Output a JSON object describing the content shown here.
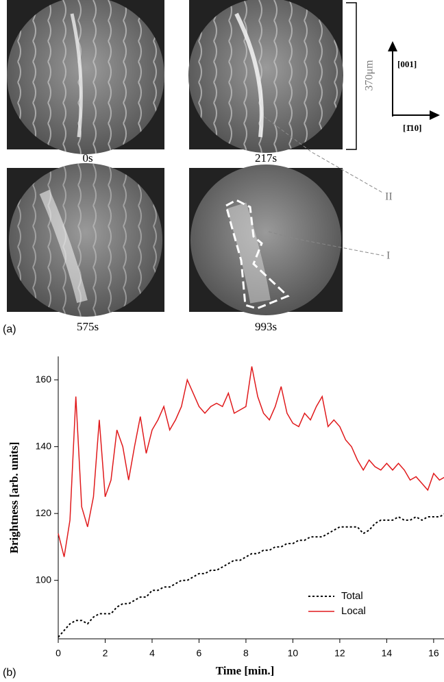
{
  "figure": {
    "panel_a": {
      "label": "(a)",
      "times": [
        "0s",
        "217s",
        "575s",
        "993s"
      ],
      "scale": "370μm",
      "dir_up": "[001]",
      "dir_right": "[1̄10]",
      "region_ii": "II",
      "region_i": "I"
    },
    "panel_b": {
      "label": "(b)"
    }
  },
  "chart_data": {
    "type": "line",
    "xlabel": "Time [min.]",
    "ylabel": "Brightness [arb. units]",
    "xlim": [
      0,
      16.5
    ],
    "ylim": [
      82.5,
      167
    ],
    "xticks": [
      0,
      2,
      4,
      6,
      8,
      10,
      12,
      14,
      16
    ],
    "yticks": [
      100,
      120,
      140,
      160
    ],
    "legend": "lower right",
    "x": [
      0,
      0.25,
      0.5,
      0.75,
      1,
      1.25,
      1.5,
      1.75,
      2,
      2.25,
      2.5,
      2.75,
      3,
      3.25,
      3.5,
      3.75,
      4,
      4.25,
      4.5,
      4.75,
      5,
      5.25,
      5.5,
      5.75,
      6,
      6.25,
      6.5,
      6.75,
      7,
      7.25,
      7.5,
      7.75,
      8,
      8.25,
      8.5,
      8.75,
      9,
      9.25,
      9.5,
      9.75,
      10,
      10.25,
      10.5,
      10.75,
      11,
      11.25,
      11.5,
      11.75,
      12,
      12.25,
      12.5,
      12.75,
      13,
      13.25,
      13.5,
      13.75,
      14,
      14.25,
      14.5,
      14.75,
      15,
      15.25,
      15.5,
      15.75,
      16,
      16.25,
      16.5
    ],
    "series": [
      {
        "name": "Total",
        "color": "#000000",
        "dash": true,
        "values": [
          83,
          85,
          87,
          88,
          88,
          87,
          89,
          90,
          90,
          90,
          92,
          93,
          93,
          94,
          95,
          95,
          97,
          97,
          98,
          98,
          99,
          100,
          100,
          101,
          102,
          102,
          103,
          103,
          104,
          105,
          106,
          106,
          107,
          108,
          108,
          109,
          109,
          110,
          110,
          111,
          111,
          112,
          112,
          113,
          113,
          113,
          114,
          115,
          116,
          116,
          116,
          116,
          114,
          115,
          117,
          118,
          118,
          118,
          119,
          118,
          118,
          119,
          118,
          119,
          119,
          119,
          120
        ]
      },
      {
        "name": "Local",
        "color": "#e0191b",
        "dash": false,
        "values": [
          114,
          107,
          118,
          155,
          122,
          116,
          125,
          148,
          125,
          130,
          145,
          140,
          130,
          140,
          149,
          138,
          145,
          148,
          152,
          145,
          148,
          152,
          160,
          156,
          152,
          150,
          152,
          153,
          152,
          156,
          150,
          151,
          152,
          164,
          155,
          150,
          148,
          152,
          158,
          150,
          147,
          146,
          150,
          148,
          152,
          155,
          146,
          148,
          146,
          142,
          140,
          136,
          133,
          136,
          134,
          133,
          135,
          133,
          135,
          133,
          130,
          131,
          129,
          127,
          132,
          130,
          131
        ]
      }
    ]
  }
}
